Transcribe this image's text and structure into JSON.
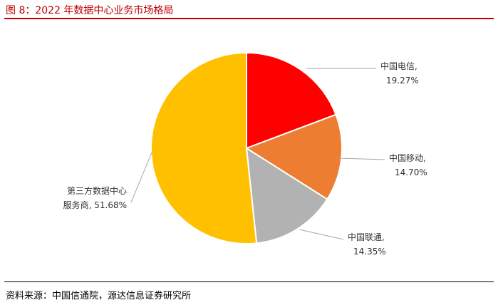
{
  "header": {
    "title": "图 8：2022 年数据中心业务市场格局"
  },
  "footer": {
    "source": "资料来源：中国信通院，源达信息证券研究所"
  },
  "chart_data": {
    "type": "pie",
    "title": "",
    "slices": [
      {
        "name": "中国电信",
        "value": 19.27,
        "label": "19.27%",
        "color": "#ff0000"
      },
      {
        "name": "中国移动",
        "value": 14.7,
        "label": "14.70%",
        "color": "#ed7d31"
      },
      {
        "name": "中国联通",
        "value": 14.35,
        "label": "14.35%",
        "color": "#b2b2b2"
      },
      {
        "name": "第三方数据中心服务商",
        "value": 51.68,
        "label": "51.68%",
        "color": "#ffc000"
      }
    ]
  }
}
